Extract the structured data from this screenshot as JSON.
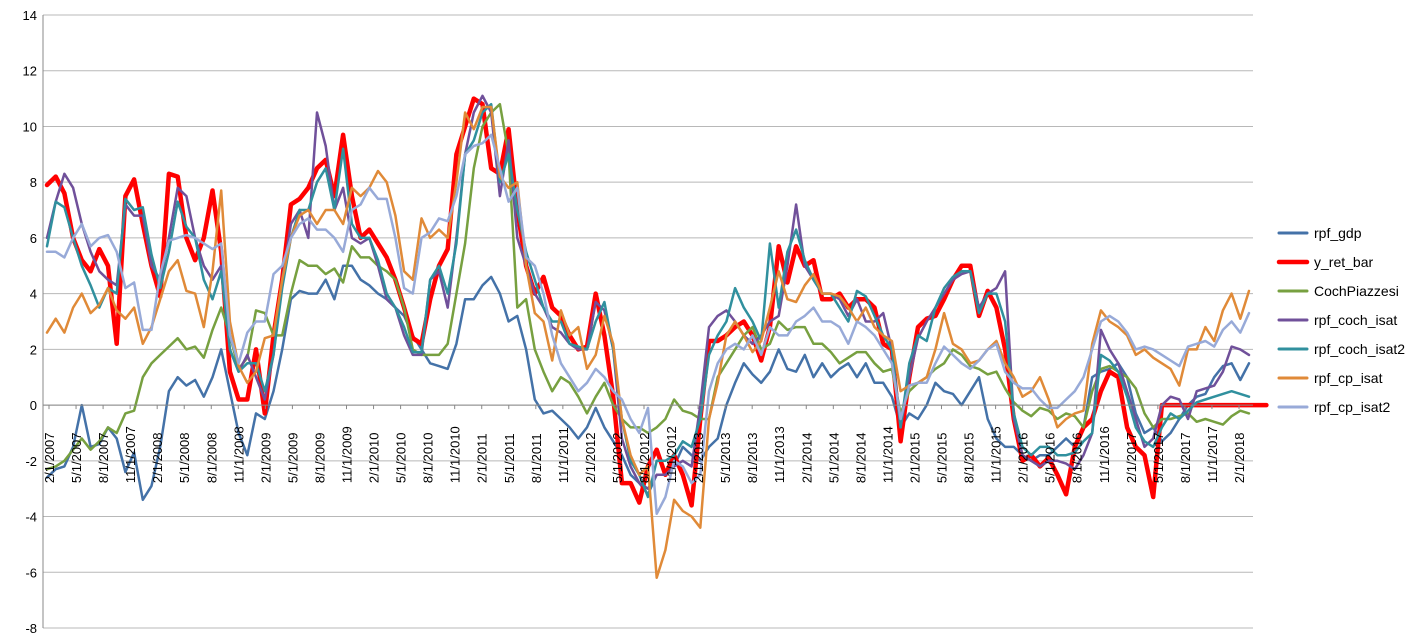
{
  "chart_data": {
    "type": "line",
    "title": "",
    "xlabel": "",
    "ylabel": "",
    "ylim": [
      -8,
      14
    ],
    "y_ticks": [
      "-8",
      "-6",
      "-4",
      "-2",
      "0",
      "2",
      "4",
      "6",
      "8",
      "10",
      "12",
      "14"
    ],
    "grid": "horizontal",
    "legend_position": "right",
    "x_tick_labels": [
      "2/1/2007",
      "5/1/2007",
      "8/1/2007",
      "11/1/2007",
      "2/1/2008",
      "5/1/2008",
      "8/1/2008",
      "11/1/2008",
      "2/1/2009",
      "5/1/2009",
      "8/1/2009",
      "11/1/2009",
      "2/1/2010",
      "5/1/2010",
      "8/1/2010",
      "11/1/2010",
      "2/1/2011",
      "5/1/2011",
      "8/1/2011",
      "11/1/2011",
      "2/1/2012",
      "5/1/2012",
      "8/1/2012",
      "11/1/2012",
      "2/1/2013",
      "5/1/2013",
      "8/1/2013",
      "11/1/2013",
      "2/1/2014",
      "5/1/2014",
      "8/1/2014",
      "11/1/2014",
      "2/1/2015",
      "5/1/2015",
      "8/1/2015",
      "11/1/2015",
      "2/1/2016",
      "5/1/2016",
      "8/1/2016",
      "11/1/2016",
      "2/1/2017",
      "5/1/2017",
      "8/1/2017",
      "11/1/2017",
      "2/1/2018"
    ],
    "series": [
      {
        "name": "rpf_gdp",
        "color": "#4472A8",
        "width": 2.5,
        "values": [
          -2.6,
          -2.3,
          -2.2,
          -1.5,
          0.0,
          -1.5,
          -1.4,
          -0.8,
          -1.2,
          -2.4,
          -1.7,
          -3.4,
          -2.9,
          -1.5,
          0.5,
          1.0,
          0.7,
          0.9,
          0.3,
          1.0,
          2.0,
          0.5,
          -1.0,
          -1.8,
          -0.3,
          -0.5,
          0.5,
          2.0,
          3.8,
          4.1,
          4.0,
          4.0,
          4.5,
          3.8,
          5.0,
          5.0,
          4.5,
          4.3,
          4.0,
          3.8,
          3.5,
          3.2,
          2.5,
          2.0,
          1.5,
          1.4,
          1.3,
          2.2,
          3.8,
          3.8,
          4.3,
          4.6,
          4.0,
          3.0,
          3.2,
          2.0,
          0.2,
          -0.3,
          -0.2,
          -0.5,
          -0.8,
          -1.2,
          -0.8,
          -0.1,
          -0.8,
          -1.3,
          -1.8,
          -2.5,
          -2.8,
          -3.2,
          -2.5,
          -2.5,
          -2.2,
          -1.5,
          -1.8,
          -2.0,
          -1.5,
          -1.2,
          0.0,
          0.8,
          1.5,
          1.1,
          0.8,
          1.2,
          2.0,
          1.3,
          1.2,
          1.8,
          1.0,
          1.5,
          1.0,
          1.3,
          1.5,
          1.0,
          1.5,
          0.8,
          0.8,
          0.3,
          -0.8,
          -0.3,
          -0.5,
          0.0,
          0.8,
          0.5,
          0.4,
          0.0,
          0.5,
          1.0,
          -0.5,
          -1.2,
          -1.5,
          -1.5,
          -1.8,
          -2.0,
          -1.8,
          -1.8,
          -1.5,
          -1.2,
          -1.5,
          -0.8,
          1.0,
          1.2,
          1.3,
          1.5,
          1.0,
          -0.3,
          -1.0,
          -0.8,
          -1.3,
          -1.0,
          -0.5,
          0.0,
          0.3,
          0.4,
          1.0,
          1.4,
          1.5,
          0.9,
          1.5
        ]
      },
      {
        "name": "y_ret_bar",
        "color": "#FF0000",
        "width": 4.5,
        "values": [
          7.9,
          8.2,
          7.6,
          6.0,
          5.2,
          4.8,
          5.6,
          5.0,
          2.2,
          7.5,
          8.1,
          6.5,
          5.0,
          3.9,
          8.3,
          8.2,
          6.0,
          5.2,
          6.0,
          7.7,
          5.5,
          1.2,
          0.2,
          0.2,
          2.0,
          -0.3,
          2.5,
          4.5,
          7.2,
          7.4,
          7.8,
          8.5,
          8.8,
          7.5,
          9.7,
          7.5,
          6.0,
          6.3,
          5.8,
          5.3,
          4.5,
          3.5,
          2.4,
          2.2,
          3.8,
          5.0,
          5.6,
          9.0,
          10.0,
          11.0,
          10.8,
          8.5,
          8.3,
          9.9,
          7.0,
          5.0,
          4.0,
          4.6,
          3.5,
          3.2,
          2.5,
          2.0,
          2.1,
          4.0,
          2.5,
          0.3,
          -2.8,
          -2.8,
          -3.5,
          -2.2,
          -1.6,
          -2.5,
          -1.8,
          -2.5,
          -3.6,
          -0.5,
          2.3,
          2.3,
          2.5,
          2.8,
          3.0,
          2.5,
          1.6,
          2.8,
          5.7,
          4.4,
          5.7,
          5.0,
          5.2,
          3.8,
          3.8,
          4.0,
          3.5,
          3.8,
          3.8,
          3.5,
          2.2,
          2.0,
          -1.3,
          1.0,
          2.8,
          3.1,
          3.2,
          3.8,
          4.5,
          5.0,
          5.0,
          3.2,
          4.1,
          3.5,
          2.0,
          -0.5,
          -2.0,
          -1.8,
          -2.2,
          -1.9,
          -2.5,
          -3.2,
          -1.5,
          -0.8,
          -0.5,
          0.5,
          1.2,
          1.0,
          -0.8,
          -1.5,
          -1.8,
          -3.3,
          0.0,
          0.0,
          0.0,
          0.0,
          0.0,
          0.0,
          0.0,
          0.0,
          0.0,
          0.0,
          0.0,
          0.0,
          0.0
        ]
      },
      {
        "name": "CochPiazzesi",
        "color": "#77A040",
        "width": 2.5,
        "values": [
          -2.3,
          -2.2,
          -2.0,
          -1.6,
          -1.2,
          -1.6,
          -1.3,
          -0.8,
          -1.0,
          -0.3,
          -0.2,
          1.0,
          1.5,
          1.8,
          2.1,
          2.4,
          2.0,
          2.1,
          1.7,
          2.7,
          3.5,
          2.5,
          1.3,
          1.7,
          3.4,
          3.3,
          2.5,
          2.5,
          4.0,
          5.2,
          5.0,
          5.0,
          4.7,
          4.9,
          4.4,
          5.7,
          5.3,
          5.3,
          5.0,
          4.8,
          4.5,
          3.5,
          2.0,
          1.8,
          1.8,
          1.8,
          2.2,
          4.0,
          5.8,
          8.5,
          10.0,
          10.5,
          10.8,
          9.0,
          3.5,
          3.8,
          2.0,
          1.2,
          0.5,
          1.0,
          0.8,
          0.3,
          -0.3,
          0.3,
          0.8,
          0.0,
          -0.5,
          -0.8,
          -0.8,
          -1.0,
          -0.8,
          -0.5,
          0.2,
          -0.2,
          -0.3,
          -0.5,
          -0.5,
          1.0,
          1.5,
          2.0,
          2.5,
          2.8,
          2.0,
          2.2,
          3.0,
          2.7,
          2.8,
          2.8,
          2.2,
          2.2,
          1.9,
          1.5,
          1.7,
          1.9,
          1.9,
          1.5,
          1.2,
          1.3,
          -0.3,
          0.5,
          0.8,
          1.0,
          1.3,
          1.5,
          2.0,
          1.8,
          1.4,
          1.3,
          1.1,
          1.2,
          0.6,
          0.1,
          -0.2,
          -0.4,
          -0.1,
          -0.2,
          -0.5,
          -0.3,
          -0.4,
          -0.8,
          0.5,
          1.3,
          1.4,
          1.2,
          1.0,
          0.6,
          -0.3,
          -0.8,
          -0.5,
          -0.5,
          -0.4,
          -0.3,
          -0.6,
          -0.5,
          -0.6,
          -0.7,
          -0.4,
          -0.2,
          -0.3
        ]
      },
      {
        "name": "rpf_coch_isat",
        "color": "#70509A",
        "width": 2.5,
        "values": [
          6.0,
          7.3,
          8.3,
          7.8,
          6.5,
          5.5,
          4.8,
          4.5,
          4.3,
          7.2,
          6.8,
          6.8,
          5.0,
          4.5,
          6.0,
          7.8,
          7.5,
          6.0,
          5.0,
          4.5,
          5.0,
          2.0,
          1.2,
          1.8,
          1.0,
          0.2,
          1.8,
          4.5,
          6.5,
          7.0,
          6.0,
          10.5,
          9.3,
          7.0,
          7.8,
          6.0,
          5.8,
          6.0,
          5.0,
          3.8,
          3.5,
          2.5,
          1.8,
          1.8,
          4.5,
          4.8,
          3.5,
          6.0,
          9.0,
          10.5,
          11.1,
          10.5,
          7.5,
          9.5,
          6.0,
          5.0,
          4.0,
          3.5,
          2.8,
          2.6,
          2.2,
          2.0,
          2.0,
          3.7,
          3.4,
          2.0,
          -1.2,
          -2.2,
          -2.8,
          -3.0,
          -2.5,
          -2.5,
          -2.2,
          -2.0,
          -2.2,
          0.0,
          2.8,
          3.2,
          3.4,
          3.0,
          2.5,
          2.2,
          2.5,
          3.0,
          3.2,
          5.0,
          7.2,
          5.0,
          4.5,
          4.0,
          4.0,
          3.8,
          3.2,
          3.8,
          3.0,
          3.0,
          3.3,
          2.0,
          -0.8,
          1.0,
          2.4,
          3.0,
          3.5,
          4.0,
          4.5,
          4.7,
          4.8,
          3.5,
          4.0,
          4.2,
          4.8,
          -0.5,
          -1.8,
          -2.0,
          -2.2,
          -2.0,
          -2.0,
          -2.1,
          -2.3,
          -1.8,
          -1.0,
          2.7,
          2.0,
          1.5,
          0.5,
          -0.5,
          -1.5,
          -1.2,
          0.0,
          0.3,
          0.2,
          -0.5,
          0.5,
          0.6,
          0.7,
          1.2,
          2.1,
          2.0,
          1.8
        ]
      },
      {
        "name": "rpf_coch_isat2",
        "color": "#30909E",
        "width": 2.5,
        "values": [
          5.7,
          7.3,
          7.1,
          6.0,
          5.0,
          4.3,
          3.5,
          4.2,
          4.0,
          7.4,
          7.0,
          7.1,
          5.4,
          4.2,
          5.5,
          7.3,
          6.4,
          6.0,
          4.5,
          3.8,
          4.8,
          2.0,
          1.2,
          1.5,
          1.5,
          0.5,
          1.8,
          4.2,
          6.0,
          7.0,
          7.0,
          8.0,
          8.5,
          7.0,
          9.2,
          6.5,
          6.0,
          6.0,
          5.2,
          4.0,
          3.5,
          2.8,
          1.9,
          1.9,
          4.5,
          5.0,
          4.0,
          5.8,
          9.0,
          9.5,
          10.5,
          10.8,
          8.0,
          9.0,
          7.0,
          5.5,
          4.5,
          3.5,
          3.0,
          3.0,
          2.2,
          2.1,
          2.0,
          3.0,
          3.7,
          2.0,
          -0.5,
          -2.0,
          -2.5,
          -3.3,
          -2.0,
          -2.0,
          -1.8,
          -1.3,
          -1.5,
          -0.5,
          1.8,
          2.5,
          3.0,
          4.2,
          3.5,
          3.0,
          2.3,
          5.8,
          3.5,
          5.5,
          6.3,
          5.2,
          4.5,
          4.0,
          4.0,
          3.5,
          3.0,
          4.1,
          3.9,
          3.2,
          2.5,
          2.0,
          -0.8,
          1.5,
          2.5,
          2.3,
          3.5,
          4.2,
          4.6,
          4.8,
          4.8,
          3.3,
          4.0,
          4.0,
          3.0,
          -0.3,
          -1.5,
          -1.8,
          -1.5,
          -1.5,
          -1.8,
          -1.8,
          -1.7,
          -1.3,
          -1.0,
          1.8,
          1.6,
          1.2,
          0.3,
          -0.8,
          -1.3,
          -1.5,
          -0.8,
          -0.3,
          -0.5,
          -0.2,
          0.1,
          0.2,
          0.3,
          0.4,
          0.5,
          0.4,
          0.3
        ]
      },
      {
        "name": "rpf_cp_isat",
        "color": "#E08A38",
        "width": 2.5,
        "values": [
          2.6,
          3.1,
          2.6,
          3.5,
          4.0,
          3.3,
          3.6,
          4.2,
          3.4,
          3.1,
          3.5,
          2.2,
          2.8,
          3.8,
          4.8,
          5.2,
          4.1,
          4.0,
          2.8,
          4.8,
          7.7,
          3.0,
          1.4,
          0.8,
          1.2,
          2.4,
          2.5,
          4.5,
          6.0,
          6.8,
          7.0,
          6.5,
          7.0,
          7.0,
          6.5,
          7.8,
          7.5,
          7.8,
          8.4,
          8.0,
          6.8,
          4.8,
          4.5,
          6.7,
          6.0,
          6.3,
          6.0,
          8.0,
          10.5,
          9.9,
          10.7,
          10.7,
          8.2,
          7.8,
          8.0,
          5.0,
          3.3,
          3.0,
          1.6,
          3.4,
          2.5,
          2.8,
          1.3,
          1.8,
          3.2,
          2.2,
          -0.5,
          -1.8,
          -2.5,
          -2.2,
          -6.2,
          -5.2,
          -3.4,
          -3.8,
          -4.0,
          -4.4,
          -0.5,
          0.8,
          2.5,
          3.0,
          2.5,
          1.9,
          2.3,
          3.5,
          4.8,
          3.8,
          3.7,
          4.3,
          4.7,
          4.0,
          4.0,
          3.9,
          3.5,
          3.0,
          3.5,
          2.8,
          2.5,
          2.3,
          0.5,
          0.7,
          0.8,
          1.0,
          2.0,
          3.3,
          2.2,
          2.0,
          1.5,
          1.6,
          2.0,
          2.3,
          1.5,
          1.0,
          0.3,
          0.5,
          1.0,
          0.2,
          -0.8,
          -0.5,
          -0.3,
          -0.2,
          2.2,
          3.4,
          3.0,
          2.8,
          2.5,
          1.8,
          2.0,
          1.7,
          1.5,
          1.3,
          0.7,
          2.0,
          2.0,
          2.8,
          2.3,
          3.4,
          4.0,
          3.1,
          4.1
        ]
      },
      {
        "name": "rpf_cp_isat2",
        "color": "#98AAD8",
        "width": 2.5,
        "values": [
          5.5,
          5.5,
          5.3,
          6.0,
          6.5,
          5.7,
          6.0,
          6.1,
          5.5,
          4.2,
          4.4,
          2.7,
          2.7,
          4.7,
          5.9,
          6.0,
          6.1,
          6.0,
          5.8,
          5.6,
          5.8,
          2.5,
          1.5,
          2.6,
          3.0,
          3.0,
          4.7,
          5.0,
          6.0,
          6.5,
          6.7,
          6.3,
          6.3,
          6.0,
          5.5,
          7.0,
          7.2,
          7.8,
          7.4,
          7.4,
          6.0,
          4.2,
          4.0,
          6.0,
          6.2,
          6.7,
          6.6,
          7.5,
          9.0,
          9.3,
          9.4,
          9.7,
          8.5,
          7.3,
          7.8,
          5.3,
          5.0,
          4.0,
          2.5,
          1.5,
          1.0,
          0.5,
          0.8,
          1.3,
          1.0,
          0.5,
          0.2,
          -0.5,
          -1.0,
          -0.1,
          -3.9,
          -3.3,
          -2.0,
          -2.2,
          -2.8,
          -2.5,
          0.5,
          1.5,
          2.0,
          2.2,
          2.0,
          2.5,
          1.8,
          2.8,
          2.5,
          2.5,
          3.0,
          3.2,
          3.5,
          3.0,
          3.0,
          2.8,
          2.2,
          3.0,
          2.8,
          2.5,
          2.0,
          1.5,
          -0.5,
          0.7,
          0.8,
          0.8,
          1.5,
          2.1,
          1.8,
          1.5,
          1.3,
          1.6,
          2.0,
          2.2,
          1.2,
          0.8,
          0.6,
          0.6,
          0.2,
          -0.1,
          -0.1,
          0.2,
          0.5,
          1.0,
          2.0,
          3.0,
          3.2,
          3.0,
          2.6,
          2.0,
          2.1,
          2.0,
          1.8,
          1.6,
          1.4,
          2.1,
          2.2,
          2.3,
          2.1,
          2.7,
          3.0,
          2.6,
          3.3
        ]
      }
    ]
  }
}
